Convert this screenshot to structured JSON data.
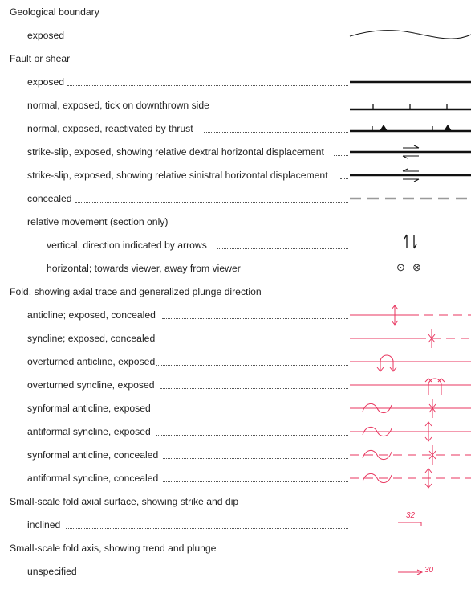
{
  "sections": [
    {
      "heading": "Geological boundary",
      "items": [
        {
          "label": "exposed",
          "symbol": "boundary-line"
        }
      ]
    },
    {
      "heading": "Fault or shear",
      "items": [
        {
          "label": "exposed",
          "symbol": "fault-line"
        },
        {
          "label": "normal, exposed, tick on downthrown side",
          "symbol": "normal-fault-ticks"
        },
        {
          "label": "normal, exposed, reactivated by thrust",
          "symbol": "normal-fault-thrust-triangles"
        },
        {
          "label": "strike-slip, exposed, showing relative dextral horizontal displacement",
          "symbol": "dextral-half-arrows"
        },
        {
          "label": "strike-slip, exposed, showing relative sinistral horizontal displacement",
          "symbol": "sinistral-half-arrows"
        },
        {
          "label": "concealed",
          "symbol": "dashed-grey-line"
        },
        {
          "label": "relative movement (section only)",
          "symbol": "none"
        },
        {
          "label": "vertical, direction indicated by arrows",
          "symbol": "up-down-arrows"
        },
        {
          "label": "horizontal; towards viewer, away from viewer",
          "symbol": "dot-circle-cross-circle",
          "glyphs": [
            "⊙",
            "⊗"
          ]
        }
      ]
    },
    {
      "heading": "Fold, showing axial trace and generalized plunge direction",
      "items": [
        {
          "label": "anticline; exposed, concealed",
          "symbol": "anticline-trace"
        },
        {
          "label": "syncline; exposed, concealed",
          "symbol": "syncline-trace"
        },
        {
          "label": "overturned anticline, exposed",
          "symbol": "overturned-anticline"
        },
        {
          "label": "overturned syncline, exposed",
          "symbol": "overturned-syncline"
        },
        {
          "label": "synformal anticline, exposed",
          "symbol": "synformal-anticline"
        },
        {
          "label": "antiformal syncline, exposed",
          "symbol": "antiformal-syncline"
        },
        {
          "label": "synformal anticline, concealed",
          "symbol": "synformal-anticline-concealed"
        },
        {
          "label": "antiformal syncline, concealed",
          "symbol": "antiformal-syncline-concealed"
        }
      ]
    },
    {
      "heading": "Small-scale fold axial surface, showing strike and dip",
      "items": [
        {
          "label": "inclined",
          "symbol": "strike-dip",
          "value": "32"
        }
      ]
    },
    {
      "heading": "Small-scale fold axis, showing trend and plunge",
      "items": [
        {
          "label": "unspecified",
          "symbol": "trend-plunge",
          "value": "30"
        }
      ]
    }
  ],
  "colors": {
    "text": "#222222",
    "fault": "#111111",
    "concealed": "#9a9a9a",
    "fold": "#e8365f"
  }
}
